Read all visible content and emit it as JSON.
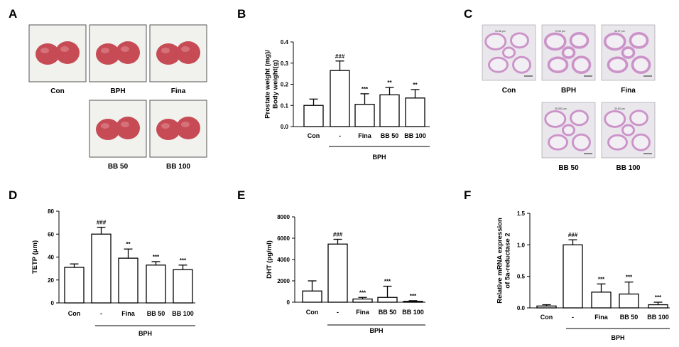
{
  "panels": {
    "A": {
      "letter": "A",
      "images": [
        {
          "label": "Con",
          "desc": "prostate-tissue-photo"
        },
        {
          "label": "BPH",
          "desc": "prostate-tissue-photo"
        },
        {
          "label": "Fina",
          "desc": "prostate-tissue-photo"
        },
        {
          "label": "BB 50",
          "desc": "prostate-tissue-photo"
        },
        {
          "label": "BB 100",
          "desc": "prostate-tissue-photo"
        }
      ]
    },
    "C": {
      "letter": "C",
      "images": [
        {
          "label": "Con",
          "measure": "31.68 μm"
        },
        {
          "label": "BPH",
          "measure": "72.98 μm"
        },
        {
          "label": "Fina",
          "measure": "36.97 μm"
        },
        {
          "label": "BB 50",
          "measure": "35.082 μm"
        },
        {
          "label": "BB 100",
          "measure": "30.63 μm"
        }
      ]
    }
  },
  "colors": {
    "bar_fill": "#ffffff",
    "stroke": "#000000",
    "photo_bg": "#f1f1ee",
    "tissue": "#c64b55",
    "histo_bg": "#e9e6ec",
    "histo_stain": "#c98bc6"
  },
  "chart_data": [
    {
      "letter": "B",
      "type": "bar",
      "categories": [
        "Con",
        "-",
        "Fina",
        "BB 50",
        "BB 100"
      ],
      "values": [
        0.1,
        0.265,
        0.105,
        0.15,
        0.135
      ],
      "errors": [
        0.03,
        0.045,
        0.05,
        0.035,
        0.04
      ],
      "annotations": [
        "",
        "###",
        "***",
        "**",
        "**"
      ],
      "ylabel": [
        "Prostate weight (mg)/",
        "Body weight(g)"
      ],
      "ylim": [
        0,
        0.4
      ],
      "yticks": [
        "0.0",
        "0.1",
        "0.2",
        "0.3",
        "0.4"
      ],
      "group_label": "BPH"
    },
    {
      "letter": "D",
      "type": "bar",
      "categories": [
        "Con",
        "-",
        "Fina",
        "BB 50",
        "BB 100"
      ],
      "values": [
        31,
        60,
        39,
        33,
        29
      ],
      "errors": [
        3,
        6,
        8,
        3,
        4
      ],
      "annotations": [
        "",
        "###",
        "**",
        "***",
        "***"
      ],
      "ylabel": [
        "TETP (μm)"
      ],
      "ylim": [
        0,
        80
      ],
      "yticks": [
        "0",
        "20",
        "40",
        "60",
        "80"
      ],
      "group_label": "BPH"
    },
    {
      "letter": "E",
      "type": "bar",
      "categories": [
        "Con",
        "-",
        "Fina",
        "BB 50",
        "BB 100"
      ],
      "values": [
        1050,
        5450,
        300,
        450,
        80
      ],
      "errors": [
        950,
        450,
        150,
        1050,
        60
      ],
      "annotations": [
        "",
        "###",
        "***",
        "***",
        "***"
      ],
      "ylabel": [
        "DHT (pg/ml)"
      ],
      "ylim": [
        0,
        8000
      ],
      "yticks": [
        "0",
        "2000",
        "4000",
        "6000",
        "8000"
      ],
      "group_label": "BPH"
    },
    {
      "letter": "F",
      "type": "bar",
      "categories": [
        "Con",
        "-",
        "Fina",
        "BB 50",
        "BB 100"
      ],
      "values": [
        0.03,
        1.0,
        0.25,
        0.22,
        0.05
      ],
      "errors": [
        0.02,
        0.08,
        0.13,
        0.19,
        0.04
      ],
      "annotations": [
        "",
        "###",
        "***",
        "***",
        "***"
      ],
      "ylabel": [
        "Relative mRNA expression",
        "of 5a-reductase 2"
      ],
      "ylim": [
        0,
        1.5
      ],
      "yticks": [
        "0.0",
        "0.5",
        "1.0",
        "1.5"
      ],
      "group_label": "BPH"
    }
  ]
}
